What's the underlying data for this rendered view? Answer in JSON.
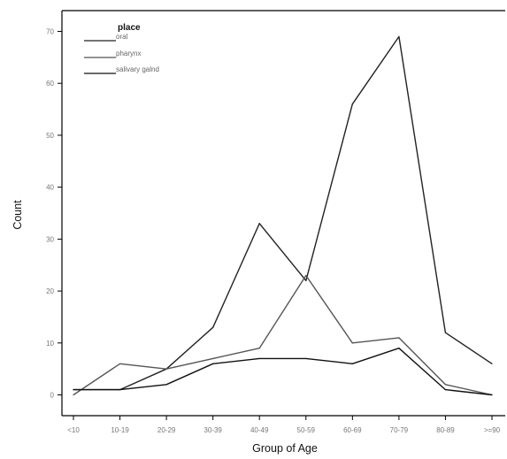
{
  "chart_data": {
    "type": "line",
    "xlabel": "Group of Age",
    "ylabel": "Count",
    "categories": [
      "<10",
      "10-19",
      "20-29",
      "30-39",
      "40-49",
      "50-59",
      "60-69",
      "70-79",
      "80-89",
      ">=90"
    ],
    "ylim": [
      -4,
      74
    ],
    "yticks": [
      0,
      10,
      20,
      30,
      40,
      50,
      60,
      70
    ],
    "grid": false,
    "legend": {
      "title": "place",
      "position": "top-left"
    },
    "series": [
      {
        "name": "oral",
        "values": [
          1,
          1,
          5,
          13,
          33,
          22,
          56,
          69,
          12,
          6
        ],
        "color": "#222222"
      },
      {
        "name": "pharynx",
        "values": [
          0,
          6,
          5,
          7,
          9,
          23,
          10,
          11,
          2,
          0
        ],
        "color": "#555555"
      },
      {
        "name": "salivary galnd",
        "values": [
          1,
          1,
          2,
          6,
          7,
          7,
          6,
          9,
          1,
          0
        ],
        "color": "#111111"
      }
    ]
  }
}
